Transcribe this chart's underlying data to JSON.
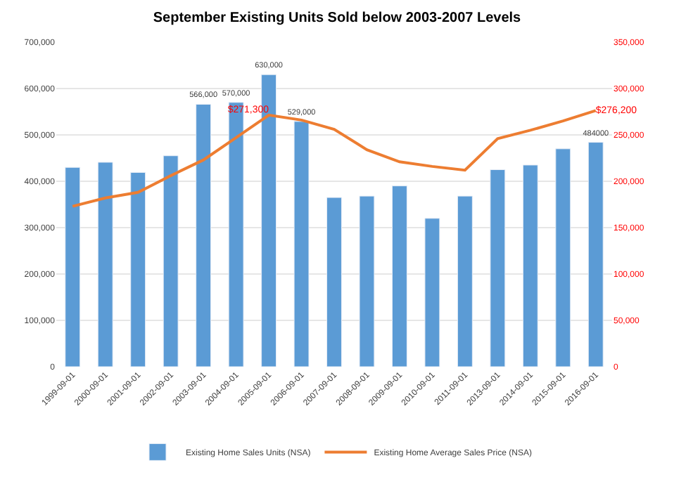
{
  "chart_data": {
    "type": "bar",
    "title": "September Existing Units Sold below 2003-2007 Levels",
    "categories": [
      "1999-09-01",
      "2000-09-01",
      "2001-09-01",
      "2002-09-01",
      "2003-09-01",
      "2004-09-01",
      "2005-09-01",
      "2006-09-01",
      "2007-09-01",
      "2008-09-01",
      "2009-09-01",
      "2010-09-01",
      "2011-09-01",
      "2013-09-01",
      "2014-09-01",
      "2015-09-01",
      "2016-09-01"
    ],
    "series": [
      {
        "name": "Existing Home Sales Units (NSA)",
        "color": "#5b9bd5",
        "values": [
          430000,
          441000,
          419000,
          455000,
          566000,
          570000,
          630000,
          529000,
          365000,
          368000,
          390000,
          320000,
          368000,
          425000,
          435000,
          470000,
          484000
        ],
        "value_labels": [
          null,
          null,
          null,
          null,
          "566,000",
          "570,000",
          "630,000",
          "529,000",
          null,
          null,
          null,
          null,
          null,
          null,
          null,
          null,
          "484000"
        ]
      },
      {
        "name": "Existing Home Average Sales Price (NSA)",
        "type": "line",
        "axis": "y2",
        "color": "#ed7d31",
        "values": [
          173000,
          182000,
          188000,
          206000,
          223000,
          247000,
          271300,
          266000,
          256000,
          234000,
          221000,
          216000,
          212000,
          246000,
          255000,
          265000,
          276200
        ],
        "value_labels": [
          null,
          null,
          null,
          null,
          null,
          null,
          "$271,300",
          null,
          null,
          null,
          null,
          null,
          null,
          null,
          null,
          null,
          "$276,200"
        ]
      }
    ],
    "ylim": [
      0,
      700000
    ],
    "yticks": [
      {
        "value": 0,
        "label": "0"
      },
      {
        "value": 100000,
        "label": "100,000"
      },
      {
        "value": 200000,
        "label": "200,000"
      },
      {
        "value": 300000,
        "label": "300,000"
      },
      {
        "value": 400000,
        "label": "400,000"
      },
      {
        "value": 500000,
        "label": "500,000"
      },
      {
        "value": 600000,
        "label": "600,000"
      },
      {
        "value": 700000,
        "label": "700,000"
      }
    ],
    "y2lim": [
      0,
      350000
    ],
    "y2ticks": [
      {
        "value": 0,
        "label": "0"
      },
      {
        "value": 50000,
        "label": "50,000"
      },
      {
        "value": 100000,
        "label": "100,000"
      },
      {
        "value": 150000,
        "label": "150,000"
      },
      {
        "value": 200000,
        "label": "200,000"
      },
      {
        "value": 250000,
        "label": "250,000"
      },
      {
        "value": 300000,
        "label": "300,000"
      },
      {
        "value": 350000,
        "label": "350,000"
      }
    ],
    "grid": "y",
    "legend": "bottom",
    "marker": "none",
    "line_style": "solid"
  }
}
